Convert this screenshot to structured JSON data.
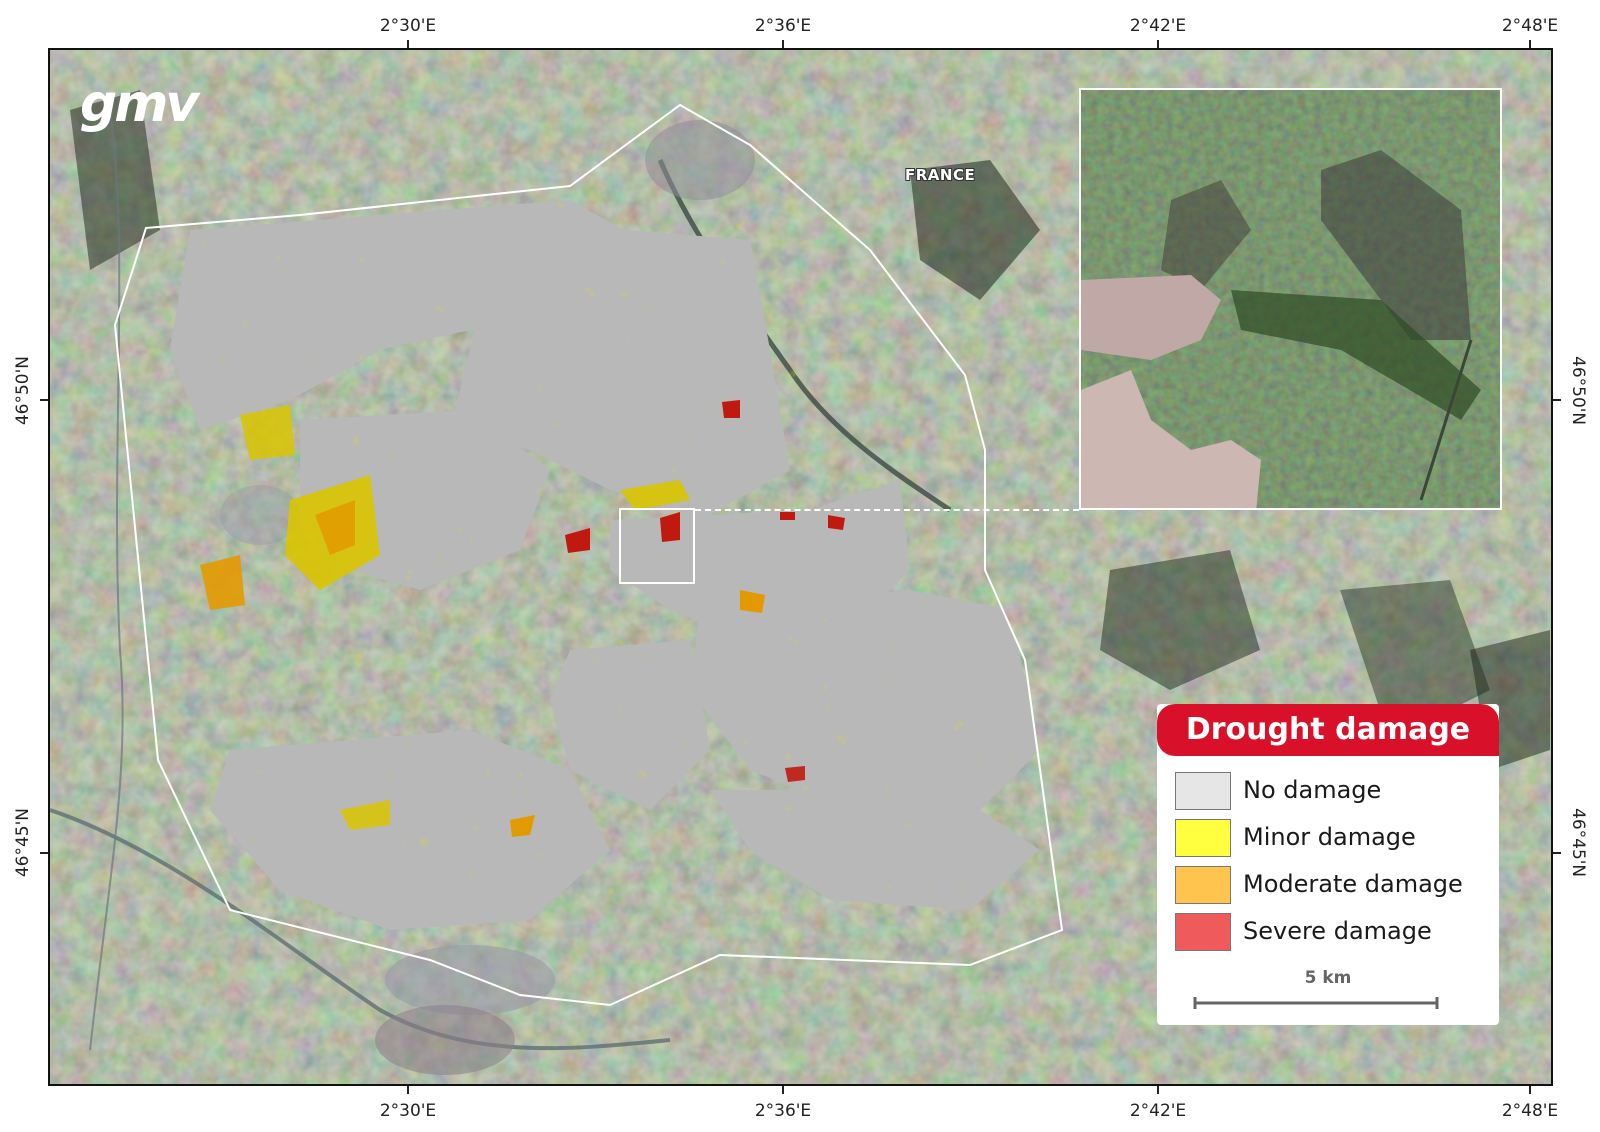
{
  "map": {
    "country_label": "FRANCE",
    "logo_text": "gmv",
    "graticule": {
      "longitudes": [
        "2°30'E",
        "2°36'E",
        "2°42'E",
        "2°48'E"
      ],
      "latitudes": [
        "46°50'N",
        "46°45'N"
      ]
    }
  },
  "legend": {
    "title": "Drought damage",
    "title_color": "#d8102a",
    "items": [
      {
        "label": "No damage",
        "color": "#e6e6e6"
      },
      {
        "label": "Minor damage",
        "color": "#ffff40"
      },
      {
        "label": "Moderate damage",
        "color": "#ffc44d"
      },
      {
        "label": "Severe damage",
        "color": "#ef5b5b"
      }
    ],
    "scale_bar_label": "5 km"
  },
  "colors": {
    "no_damage_overlay": "#b8b8b8",
    "minor": "#d9c400",
    "moderate": "#e39a00",
    "severe": "#c01a10"
  }
}
